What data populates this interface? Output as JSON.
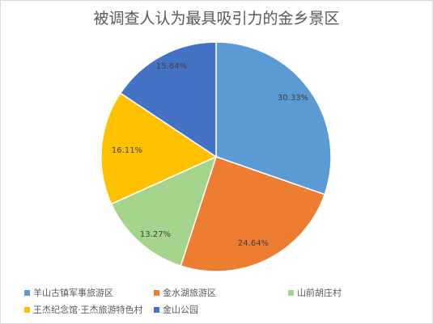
{
  "chart_data": {
    "type": "pie",
    "title": "被调查人认为最具吸引力的金乡景区",
    "categories": [
      "羊山古镇军事旅游区",
      "金水湖旅游区",
      "山前胡庄村",
      "王杰纪念馆·王杰旅游特色村",
      "金山公园"
    ],
    "values": [
      30.33,
      24.64,
      13.27,
      16.11,
      15.64
    ],
    "value_labels": [
      "30.33%",
      "24.64%",
      "13.27%",
      "16.11%",
      "15.64%"
    ],
    "colors": [
      "#5B9BD5",
      "#ED7D31",
      "#A5D58D",
      "#FFC000",
      "#4472C4"
    ],
    "legend_position": "bottom",
    "start_angle": "12 o'clock",
    "direction": "clockwise"
  }
}
